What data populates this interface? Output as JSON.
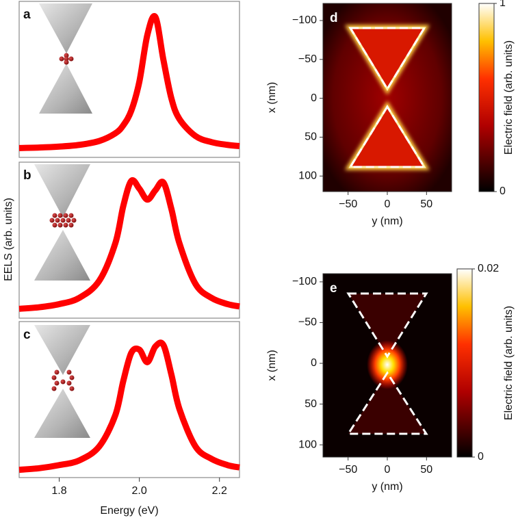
{
  "chart_data": [
    {
      "type": "line",
      "panel_label": "a",
      "xlim": [
        1.7,
        2.25
      ],
      "ylim": [
        0,
        1
      ],
      "color": "#ff0000",
      "x": [
        1.7,
        1.75,
        1.8,
        1.85,
        1.9,
        1.94,
        1.96,
        1.98,
        2.0,
        2.02,
        2.04,
        2.06,
        2.08,
        2.1,
        2.14,
        2.18,
        2.22,
        2.25
      ],
      "values": [
        0.06,
        0.063,
        0.069,
        0.08,
        0.105,
        0.154,
        0.206,
        0.3,
        0.485,
        0.785,
        0.9,
        0.626,
        0.378,
        0.246,
        0.137,
        0.098,
        0.08,
        0.072
      ]
    },
    {
      "type": "line",
      "panel_label": "b",
      "ylabel": "EELS (arb. units)",
      "xlim": [
        1.7,
        2.25
      ],
      "ylim": [
        0,
        1
      ],
      "color": "#ff0000",
      "x": [
        1.7,
        1.75,
        1.8,
        1.85,
        1.9,
        1.94,
        1.96,
        1.98,
        2.0,
        2.02,
        2.04,
        2.06,
        2.08,
        2.1,
        2.14,
        2.18,
        2.22,
        2.25
      ],
      "values": [
        0.06,
        0.07,
        0.09,
        0.13,
        0.24,
        0.48,
        0.72,
        0.88,
        0.83,
        0.76,
        0.82,
        0.87,
        0.7,
        0.48,
        0.22,
        0.13,
        0.09,
        0.075
      ]
    },
    {
      "type": "line",
      "panel_label": "c",
      "xlabel": "Energy (eV)",
      "xlim": [
        1.7,
        2.25
      ],
      "ylim": [
        0,
        1
      ],
      "color": "#ff0000",
      "xticks": [
        1.8,
        {
          "value": 2,
          "label": "2.0"
        },
        2.2
      ],
      "x": [
        1.7,
        1.75,
        1.8,
        1.85,
        1.9,
        1.94,
        1.96,
        1.98,
        2.0,
        2.02,
        2.04,
        2.06,
        2.08,
        2.1,
        2.14,
        2.18,
        2.22,
        2.25
      ],
      "values": [
        0.05,
        0.06,
        0.08,
        0.11,
        0.2,
        0.4,
        0.62,
        0.8,
        0.82,
        0.74,
        0.84,
        0.85,
        0.66,
        0.44,
        0.2,
        0.12,
        0.08,
        0.065
      ]
    },
    {
      "type": "heatmap",
      "panel_label": "d",
      "xlabel": "y (nm)",
      "ylabel": "x (nm)",
      "y_inverted": true,
      "xlim": [
        -82,
        82
      ],
      "ylim": [
        -122,
        120
      ],
      "xticks": [
        {
          "value": -50,
          "label": "−50"
        },
        0,
        50
      ],
      "yticks": [
        {
          "value": -100,
          "label": "−100"
        },
        {
          "value": -50,
          "label": "−50"
        },
        0,
        50,
        100
      ],
      "colorbar": {
        "label": "Electric field (arb. units)",
        "lim": [
          0,
          1
        ],
        "ticks": [
          0,
          1
        ]
      },
      "colormap": "hot"
    },
    {
      "type": "heatmap",
      "panel_label": "e",
      "xlabel": "y (nm)",
      "ylabel": "x (nm)",
      "y_inverted": true,
      "xlim": [
        -82,
        82
      ],
      "ylim": [
        -110,
        115
      ],
      "xticks": [
        {
          "value": -50,
          "label": "−50"
        },
        0,
        50
      ],
      "yticks": [
        {
          "value": -100,
          "label": "−100"
        },
        {
          "value": -50,
          "label": "−50"
        },
        0,
        50,
        100
      ],
      "colorbar": {
        "label": "Electric field (arb. units)",
        "lim": [
          0,
          0.02
        ],
        "ticks": [
          0,
          0.02
        ]
      },
      "colormap": "hot"
    }
  ]
}
